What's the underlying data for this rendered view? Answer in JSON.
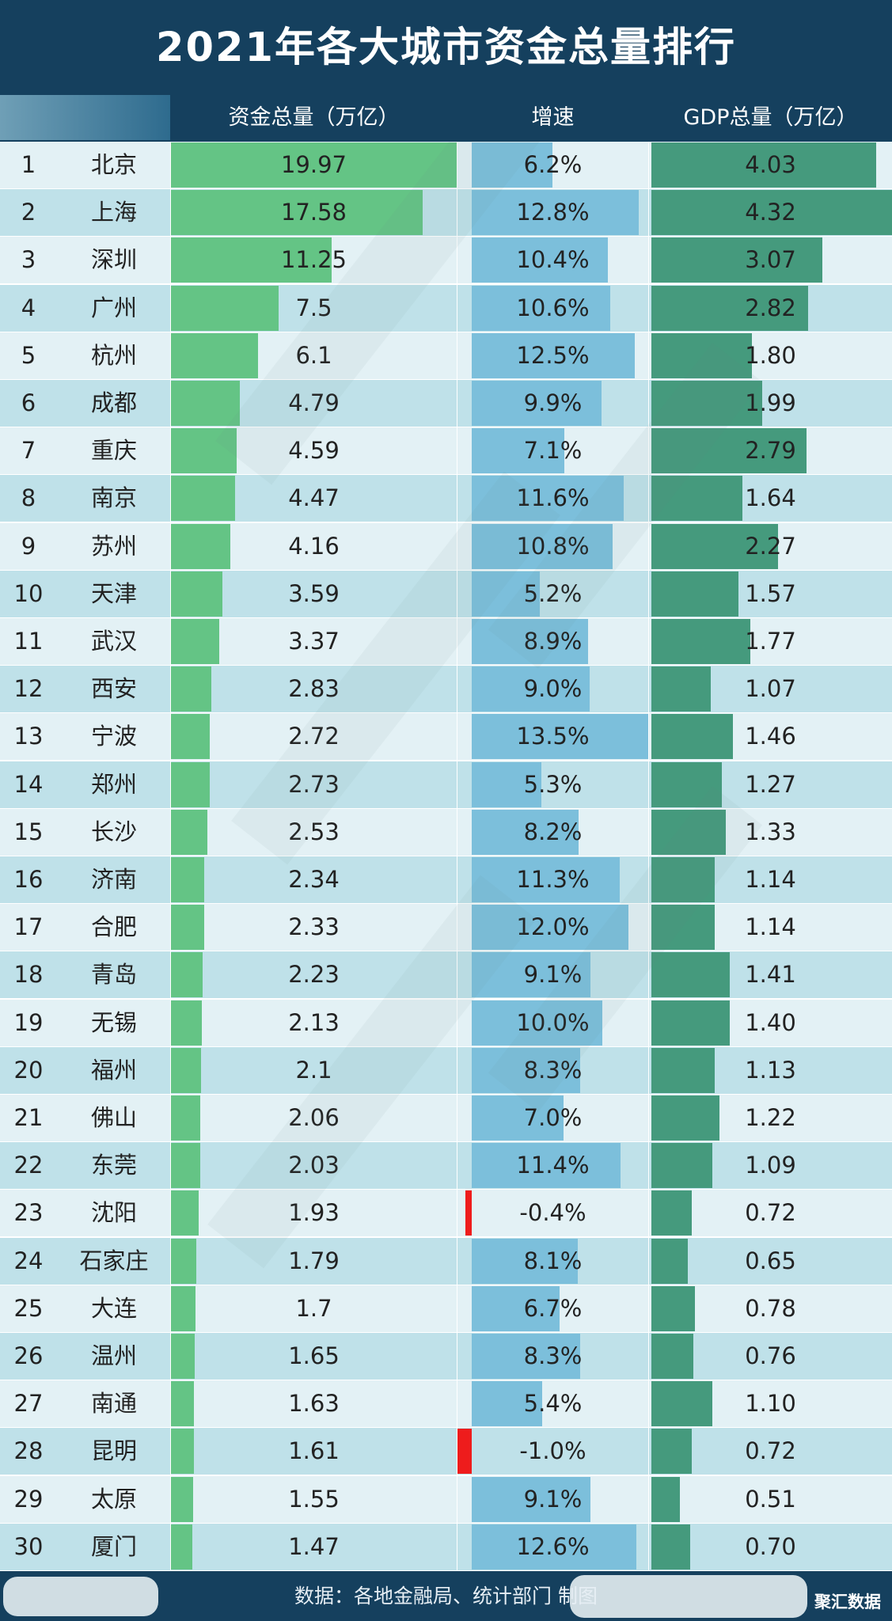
{
  "title": "2021年各大城市资金总量排行",
  "headers": {
    "money": "资金总量（万亿）",
    "growth": "增速",
    "gdp": "GDP总量（万亿）"
  },
  "footer": {
    "source": "数据：各地金融局、统计部门 制图",
    "logo": "聚汇数据"
  },
  "colors": {
    "header_bg": "#15405e",
    "money_bar": "#64c485",
    "growth_bar": "#7cbfdb",
    "growth_negative_bar": "#ee1c1c",
    "gdp_bar": "#459a7d",
    "row_light": "#e3f1f5",
    "row_dark": "#bfe1e9"
  },
  "chart_data": {
    "type": "table",
    "title": "2021年各大城市资金总量排行",
    "columns": [
      "资金总量（万亿）",
      "增速",
      "GDP总量（万亿）"
    ],
    "rows": [
      {
        "rank": "1",
        "city": "北京",
        "money": "19.97",
        "growth": "6.2%",
        "gdp": "4.03"
      },
      {
        "rank": "2",
        "city": "上海",
        "money": "17.58",
        "growth": "12.8%",
        "gdp": "4.32"
      },
      {
        "rank": "3",
        "city": "深圳",
        "money": "11.25",
        "growth": "10.4%",
        "gdp": "3.07"
      },
      {
        "rank": "4",
        "city": "广州",
        "money": "7.5",
        "growth": "10.6%",
        "gdp": "2.82"
      },
      {
        "rank": "5",
        "city": "杭州",
        "money": "6.1",
        "growth": "12.5%",
        "gdp": "1.80"
      },
      {
        "rank": "6",
        "city": "成都",
        "money": "4.79",
        "growth": "9.9%",
        "gdp": "1.99"
      },
      {
        "rank": "7",
        "city": "重庆",
        "money": "4.59",
        "growth": "7.1%",
        "gdp": "2.79"
      },
      {
        "rank": "8",
        "city": "南京",
        "money": "4.47",
        "growth": "11.6%",
        "gdp": "1.64"
      },
      {
        "rank": "9",
        "city": "苏州",
        "money": "4.16",
        "growth": "10.8%",
        "gdp": "2.27"
      },
      {
        "rank": "10",
        "city": "天津",
        "money": "3.59",
        "growth": "5.2%",
        "gdp": "1.57"
      },
      {
        "rank": "11",
        "city": "武汉",
        "money": "3.37",
        "growth": "8.9%",
        "gdp": "1.77"
      },
      {
        "rank": "12",
        "city": "西安",
        "money": "2.83",
        "growth": "9.0%",
        "gdp": "1.07"
      },
      {
        "rank": "13",
        "city": "宁波",
        "money": "2.72",
        "growth": "13.5%",
        "gdp": "1.46"
      },
      {
        "rank": "14",
        "city": "郑州",
        "money": "2.73",
        "growth": "5.3%",
        "gdp": "1.27"
      },
      {
        "rank": "15",
        "city": "长沙",
        "money": "2.53",
        "growth": "8.2%",
        "gdp": "1.33"
      },
      {
        "rank": "16",
        "city": "济南",
        "money": "2.34",
        "growth": "11.3%",
        "gdp": "1.14"
      },
      {
        "rank": "17",
        "city": "合肥",
        "money": "2.33",
        "growth": "12.0%",
        "gdp": "1.14"
      },
      {
        "rank": "18",
        "city": "青岛",
        "money": "2.23",
        "growth": "9.1%",
        "gdp": "1.41"
      },
      {
        "rank": "19",
        "city": "无锡",
        "money": "2.13",
        "growth": "10.0%",
        "gdp": "1.40"
      },
      {
        "rank": "20",
        "city": "福州",
        "money": "2.1",
        "growth": "8.3%",
        "gdp": "1.13"
      },
      {
        "rank": "21",
        "city": "佛山",
        "money": "2.06",
        "growth": "7.0%",
        "gdp": "1.22"
      },
      {
        "rank": "22",
        "city": "东莞",
        "money": "2.03",
        "growth": "11.4%",
        "gdp": "1.09"
      },
      {
        "rank": "23",
        "city": "沈阳",
        "money": "1.93",
        "growth": "-0.4%",
        "gdp": "0.72"
      },
      {
        "rank": "24",
        "city": "石家庄",
        "money": "1.79",
        "growth": "8.1%",
        "gdp": "0.65"
      },
      {
        "rank": "25",
        "city": "大连",
        "money": "1.7",
        "growth": "6.7%",
        "gdp": "0.78"
      },
      {
        "rank": "26",
        "city": "温州",
        "money": "1.65",
        "growth": "8.3%",
        "gdp": "0.76"
      },
      {
        "rank": "27",
        "city": "南通",
        "money": "1.63",
        "growth": "5.4%",
        "gdp": "1.10"
      },
      {
        "rank": "28",
        "city": "昆明",
        "money": "1.61",
        "growth": "-1.0%",
        "gdp": "0.72"
      },
      {
        "rank": "29",
        "city": "太原",
        "money": "1.55",
        "growth": "9.1%",
        "gdp": "0.51"
      },
      {
        "rank": "30",
        "city": "厦门",
        "money": "1.47",
        "growth": "12.6%",
        "gdp": "0.70"
      }
    ],
    "scales": {
      "money_max": 19.97,
      "growth_max": 13.5,
      "gdp_max": 4.32
    }
  }
}
